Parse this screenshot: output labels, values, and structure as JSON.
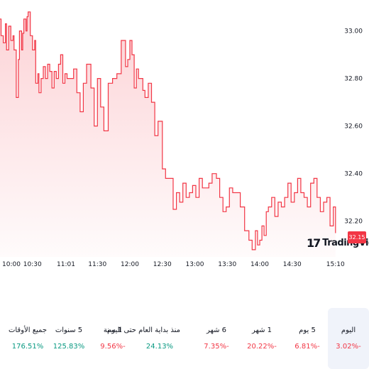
{
  "chart_data": {
    "type": "area",
    "y_ticks": [
      "33.00",
      "32.80",
      "32.60",
      "32.40",
      "32.20"
    ],
    "y_tick_values": [
      33.0,
      32.8,
      32.6,
      32.4,
      32.2
    ],
    "x_ticks": [
      "10:00",
      "10:30",
      "11:01",
      "11:30",
      "12:00",
      "12:30",
      "13:00",
      "13:30",
      "14:00",
      "14:30",
      "15:10"
    ],
    "x_tick_minutes": [
      0,
      30,
      61,
      90,
      120,
      150,
      180,
      210,
      240,
      270,
      310
    ],
    "ylim": [
      32.05,
      33.13
    ],
    "xlim": [
      0,
      320
    ],
    "grid": false,
    "line_color": "#f23645",
    "fill_color": "#f23645",
    "last_price": "32.15",
    "series": [
      {
        "x": [
          0,
          1,
          3,
          5,
          6,
          8,
          10,
          12,
          13,
          15,
          17,
          18,
          20,
          21,
          22,
          24,
          25,
          26,
          28,
          30,
          32,
          33,
          35,
          36,
          38,
          40,
          42,
          44,
          46,
          48,
          50,
          52,
          54,
          56,
          58,
          60,
          62,
          65,
          68,
          71,
          74,
          77,
          80,
          84,
          87,
          90,
          93,
          96,
          100,
          104,
          108,
          112,
          116,
          118,
          120,
          122,
          124,
          126,
          128,
          130,
          132,
          134,
          137,
          140,
          143,
          146,
          150,
          153,
          156,
          160,
          163,
          166,
          169,
          172,
          175,
          178,
          181,
          184,
          187,
          190,
          193,
          196,
          200,
          203,
          206,
          209,
          212,
          215,
          218,
          222,
          226,
          230,
          233,
          236,
          238,
          240,
          242,
          244,
          246,
          248,
          251,
          254,
          257,
          260,
          263,
          266,
          269,
          272,
          275,
          278,
          281,
          284,
          287,
          290,
          293,
          296,
          299,
          302,
          305,
          308,
          310
        ],
        "y": [
          33.05,
          32.98,
          32.95,
          33.03,
          32.92,
          33.02,
          32.96,
          32.98,
          32.92,
          32.72,
          32.88,
          33.0,
          32.92,
          32.99,
          33.05,
          33.0,
          33.06,
          33.08,
          32.98,
          32.92,
          32.96,
          32.78,
          32.82,
          32.74,
          32.8,
          32.85,
          32.8,
          32.86,
          32.83,
          32.76,
          32.83,
          32.8,
          32.86,
          32.9,
          32.78,
          32.82,
          32.8,
          32.8,
          32.84,
          32.74,
          32.66,
          32.78,
          32.86,
          32.76,
          32.6,
          32.8,
          32.68,
          32.58,
          32.78,
          32.8,
          32.82,
          32.96,
          32.85,
          32.88,
          32.96,
          32.9,
          32.76,
          32.84,
          32.8,
          32.8,
          32.75,
          32.72,
          32.78,
          32.7,
          32.56,
          32.62,
          32.42,
          32.38,
          32.38,
          32.25,
          32.32,
          32.28,
          32.36,
          32.3,
          32.32,
          32.35,
          32.3,
          32.38,
          32.34,
          32.34,
          32.36,
          32.4,
          32.38,
          32.3,
          32.24,
          32.26,
          32.34,
          32.32,
          32.32,
          32.26,
          32.16,
          32.12,
          32.08,
          32.16,
          32.1,
          32.12,
          32.18,
          32.14,
          32.24,
          32.26,
          32.3,
          32.22,
          32.28,
          32.26,
          32.3,
          32.36,
          32.28,
          32.32,
          32.38,
          32.32,
          32.3,
          32.26,
          32.36,
          32.38,
          32.3,
          32.24,
          32.28,
          32.3,
          32.18,
          32.26,
          32.15
        ]
      }
    ]
  },
  "brand": {
    "name": "TradingView",
    "mark": "17"
  },
  "periods": [
    {
      "label": "اليوم",
      "value": "3.02%-",
      "color": "#f23645",
      "active": true
    },
    {
      "label": "5 يوم",
      "value": "6.81%-",
      "color": "#f23645",
      "active": false
    },
    {
      "label": "1 شهر",
      "value": "20.22%-",
      "color": "#f23645",
      "active": false
    },
    {
      "label": "6 شهر",
      "value": "7.35%-",
      "color": "#f23645",
      "active": false
    },
    {
      "label": "منذ بداية العام حتى اليوم",
      "value": "24.13%",
      "color": "#089981",
      "active": false
    },
    {
      "label": "1 سنة",
      "value": "9.56%-",
      "color": "#f23645",
      "active": false
    },
    {
      "label": "5 سنوات",
      "value": "125.83%",
      "color": "#089981",
      "active": false
    },
    {
      "label": "جميع الأوقات",
      "value": "176.51%",
      "color": "#089981",
      "active": false
    }
  ]
}
